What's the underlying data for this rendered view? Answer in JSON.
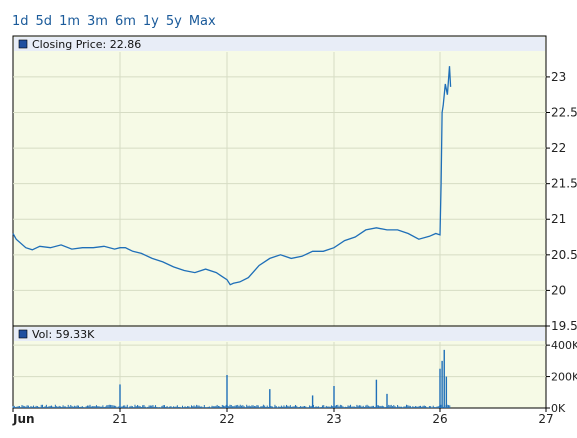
{
  "range_tabs": [
    "1d",
    "5d",
    "1m",
    "3m",
    "6m",
    "1y",
    "5y",
    "Max"
  ],
  "price_legend": "Closing Price: 22.86",
  "volume_legend": "Vol: 59.33K",
  "colors": {
    "line": "#1f6fb8",
    "plot_bg": "#f6fae6",
    "legend_bg": "#e8edf7",
    "grid": "#d6dcc4",
    "border": "#000000",
    "accent": "#1a5a9a"
  },
  "chart_data": [
    {
      "type": "line",
      "title": "",
      "legend": "Closing Price: 22.86",
      "x_ticks": [
        "Jun",
        "21",
        "22",
        "23",
        "26",
        "27"
      ],
      "y_ticks": [
        "23",
        "22.5",
        "22",
        "21.5",
        "21",
        "20.5",
        "20",
        "19.5"
      ],
      "ylim": [
        19.5,
        23.35
      ],
      "series": [
        {
          "x": [
            0,
            0.03,
            0.12,
            0.18,
            0.25,
            0.35,
            0.45,
            0.55,
            0.65,
            0.75,
            0.85,
            0.95,
            1.0,
            1.05,
            1.12,
            1.2,
            1.3,
            1.4,
            1.5,
            1.6,
            1.7,
            1.8,
            1.9,
            1.95,
            2.0,
            2.03,
            2.06,
            2.12,
            2.2,
            2.3,
            2.4,
            2.5,
            2.6,
            2.7,
            2.8,
            2.9,
            3.0,
            3.1,
            3.2,
            3.3,
            3.4,
            3.5,
            3.6,
            3.7,
            3.8,
            3.9,
            3.96,
            4.0,
            4.01,
            4.02,
            4.03,
            4.05,
            4.07,
            4.09,
            4.1
          ],
          "y": [
            20.8,
            20.72,
            20.6,
            20.57,
            20.62,
            20.6,
            20.64,
            20.58,
            20.6,
            20.6,
            20.62,
            20.58,
            20.6,
            20.6,
            20.55,
            20.52,
            20.45,
            20.4,
            20.33,
            20.28,
            20.25,
            20.3,
            20.25,
            20.2,
            20.15,
            20.08,
            20.1,
            20.12,
            20.18,
            20.35,
            20.45,
            20.5,
            20.45,
            20.48,
            20.55,
            20.55,
            20.6,
            20.7,
            20.75,
            20.85,
            20.88,
            20.85,
            20.85,
            20.8,
            20.72,
            20.76,
            20.8,
            20.78,
            21.5,
            22.5,
            22.6,
            22.9,
            22.75,
            23.15,
            22.86
          ]
        }
      ]
    },
    {
      "type": "bar",
      "title": "",
      "legend": "Vol: 59.33K",
      "y_ticks": [
        "400K",
        "200K",
        "0K"
      ],
      "ylim": [
        0,
        420000
      ],
      "spikes": [
        {
          "x": 1.0,
          "v": 150000
        },
        {
          "x": 2.0,
          "v": 210000
        },
        {
          "x": 2.4,
          "v": 120000
        },
        {
          "x": 2.8,
          "v": 80000
        },
        {
          "x": 3.0,
          "v": 140000
        },
        {
          "x": 3.4,
          "v": 180000
        },
        {
          "x": 3.5,
          "v": 90000
        },
        {
          "x": 4.0,
          "v": 250000
        },
        {
          "x": 4.02,
          "v": 300000
        },
        {
          "x": 4.04,
          "v": 370000
        },
        {
          "x": 4.06,
          "v": 200000
        }
      ],
      "base_level": 14000
    }
  ]
}
